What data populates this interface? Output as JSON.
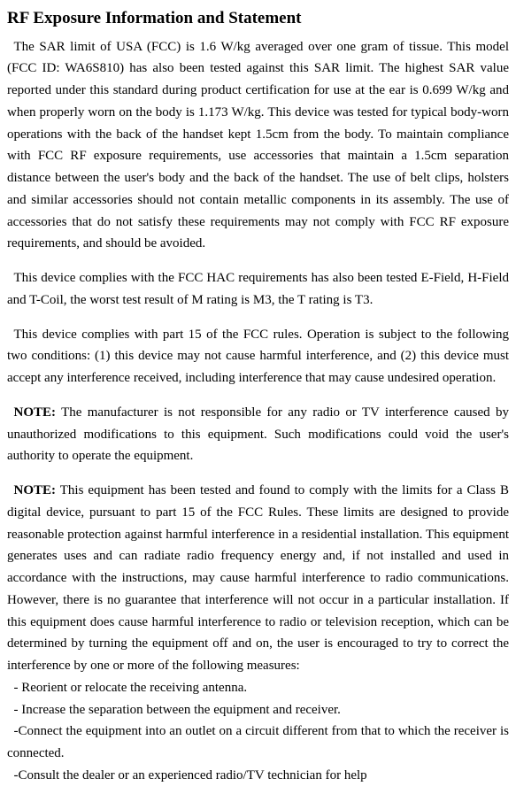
{
  "title": "RF Exposure Information and Statement",
  "paragraphs": {
    "sar": "The SAR limit of USA (FCC) is 1.6 W/kg averaged over one gram of tissue. This model (FCC ID: WA6S810) has also been tested against this SAR limit. The highest SAR value reported under this standard during product certification for use at the ear is 0.699 W/kg and when properly worn on the body is 1.173 W/kg. This device was tested for typical body-worn operations with the back of the handset kept 1.5cm from the body. To maintain compliance with FCC RF exposure requirements, use accessories that maintain a 1.5cm separation distance between the user's body and the back of the handset. The use of belt clips, holsters and similar accessories should not contain metallic components in its assembly. The use of accessories that do not satisfy these requirements may not comply with FCC RF exposure requirements, and should be avoided.",
    "hac": "This device complies with the FCC HAC requirements has also been tested E-Field, H-Field and T-Coil, the worst test result of M rating is M3, the T rating is T3.",
    "part15": "This device complies with part 15 of the FCC rules. Operation is subject to the following two conditions: (1) this device may not cause harmful interference, and (2) this device must accept any interference received, including interference that may cause undesired operation.",
    "note1_label": "NOTE:",
    "note1_body": " The manufacturer is not responsible for any radio or TV interference caused by unauthorized modifications to this equipment. Such modifications could void the user's authority to operate the equipment.",
    "note2_label": "NOTE:",
    "note2_body": " This equipment has been tested and found to comply with the limits for a Class B digital device, pursuant to part 15 of the FCC Rules.  These limits are designed to provide reasonable protection against harmful interference in a residential installation.  This equipment generates uses and can radiate radio frequency energy and, if not installed and used in accordance with the instructions, may cause harmful interference to radio communications.  However, there is no guarantee that interference will not occur in a particular installation.  If this equipment does cause harmful interference to radio or television reception, which can be determined by turning the equipment off and on, the user is encouraged to try to correct the interference by one or more of the following measures:",
    "measures": [
      "- Reorient or relocate the receiving antenna.",
      "- Increase the separation between the equipment and receiver.",
      "-Connect the equipment into an outlet on a circuit different from that to which the receiver is connected.",
      "-Consult the dealer or an experienced radio/TV technician for help"
    ]
  }
}
